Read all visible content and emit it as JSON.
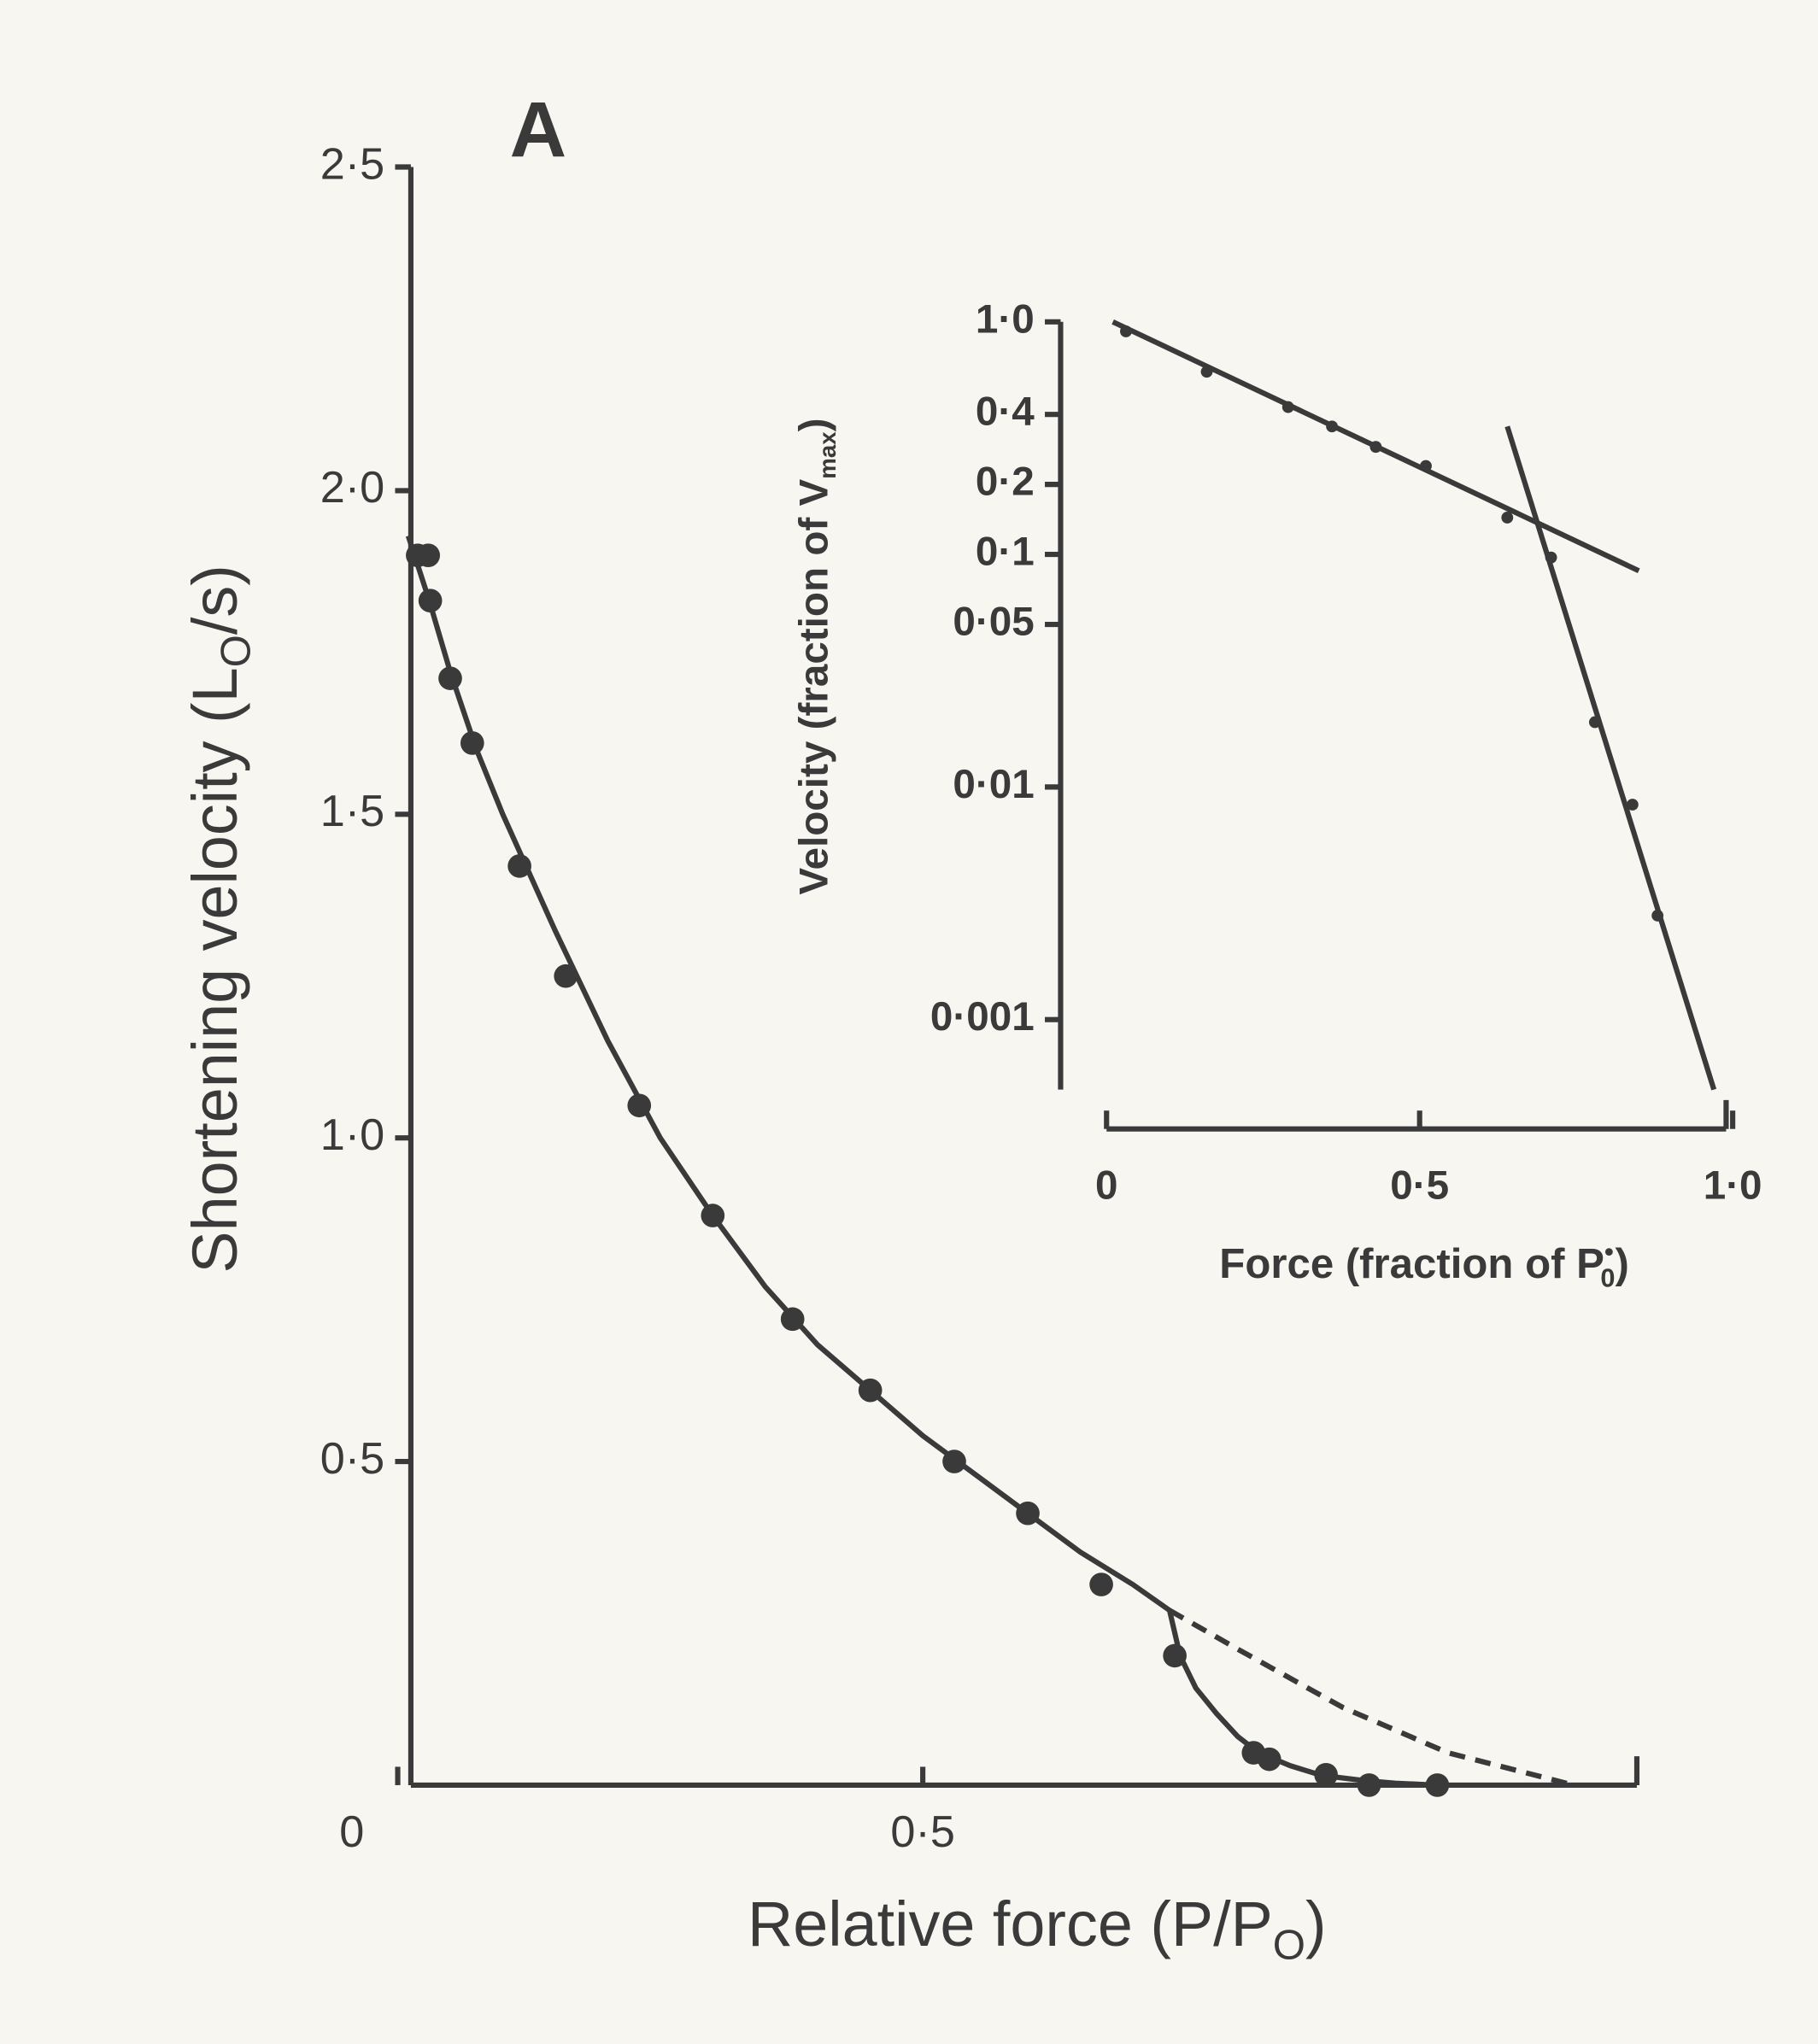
{
  "chart_data": [
    {
      "type": "scatter",
      "title": "A",
      "xlabel": {
        "main": "Relative force (P/P",
        "sub": "O",
        "end": ")"
      },
      "ylabel": {
        "main": "Shortening velocity (L",
        "sub": "O",
        "end": "/s)"
      },
      "xlim": [
        0,
        1.18
      ],
      "ylim": [
        0,
        2.5
      ],
      "xticks": [
        0,
        {
          "value": 0.5,
          "label": "0·5"
        }
      ],
      "yticks": [
        {
          "value": 0.5,
          "label": "0·5"
        },
        {
          "value": 1.0,
          "label": "1·0"
        },
        {
          "value": 1.5,
          "label": "1·5"
        },
        {
          "value": 2.0,
          "label": "2·0"
        },
        {
          "value": 2.5,
          "label": "2·5"
        }
      ],
      "color": "#3a3a3a",
      "x": [
        0.019,
        0.029,
        0.031,
        0.05,
        0.071,
        0.116,
        0.16,
        0.23,
        0.3,
        0.376,
        0.45,
        0.53,
        0.6,
        0.67,
        0.74,
        0.815,
        0.83,
        0.884,
        0.925,
        0.99
      ],
      "y": [
        1.9,
        1.9,
        1.83,
        1.71,
        1.61,
        1.42,
        1.25,
        1.05,
        0.88,
        0.72,
        0.61,
        0.5,
        0.42,
        0.31,
        0.2,
        0.05,
        0.04,
        0.016,
        0.0,
        0.0
      ],
      "lines": [
        {
          "x": [
            0.01,
            0.03,
            0.05,
            0.075,
            0.1,
            0.15,
            0.2,
            0.25,
            0.3,
            0.35,
            0.4,
            0.45,
            0.5,
            0.55,
            0.6,
            0.65,
            0.7,
            0.735,
            0.745,
            0.76,
            0.78,
            0.8,
            0.82,
            0.85,
            0.88,
            0.92,
            0.95,
            0.99
          ],
          "y": [
            1.93,
            1.83,
            1.72,
            1.6,
            1.5,
            1.32,
            1.15,
            1.0,
            0.88,
            0.77,
            0.68,
            0.61,
            0.54,
            0.48,
            0.42,
            0.36,
            0.31,
            0.27,
            0.2,
            0.15,
            0.11,
            0.075,
            0.05,
            0.03,
            0.015,
            0.007,
            0.003,
            0.0
          ],
          "dash": false
        },
        {
          "x": [
            0.735,
            0.8,
            0.9,
            1.0,
            1.12
          ],
          "y": [
            0.27,
            0.21,
            0.12,
            0.05,
            0.0
          ],
          "dash": true
        }
      ]
    },
    {
      "type": "scatter",
      "ylog": true,
      "xlabel": {
        "main": "Force (fraction of P",
        "sup": "•",
        "sub": "0",
        "end": ")"
      },
      "ylabel": {
        "main": "Velocity (fraction of V",
        "sub": "max",
        "end": ")"
      },
      "xlim": [
        0,
        1.0
      ],
      "ylim": [
        0.0005,
        1.0
      ],
      "xticks": [
        0,
        {
          "value": 0.5,
          "label": "0·5"
        },
        {
          "value": 1.0,
          "label": "1·0"
        }
      ],
      "yticks": [
        {
          "value": 1.0,
          "label": "1·0"
        },
        {
          "value": 0.4,
          "label": "0·4"
        },
        {
          "value": 0.2,
          "label": "0·2"
        },
        {
          "value": 0.1,
          "label": "0·1"
        },
        {
          "value": 0.05,
          "label": "0·05"
        },
        {
          "value": 0.01,
          "label": "0·01"
        },
        {
          "value": 0.001,
          "label": "0·001"
        }
      ],
      "color": "#3a3a3a",
      "x": [
        0.031,
        0.16,
        0.29,
        0.36,
        0.43,
        0.51,
        0.64,
        0.71,
        0.78,
        0.84,
        0.88
      ],
      "y": [
        0.91,
        0.61,
        0.43,
        0.355,
        0.29,
        0.24,
        0.144,
        0.097,
        0.019,
        0.0084,
        0.0028
      ],
      "lines": [
        {
          "x": [
            0.01,
            0.85
          ],
          "y": [
            1.0,
            0.085
          ],
          "dash": false
        },
        {
          "x": [
            0.64,
            0.97
          ],
          "y": [
            0.355,
            0.0005
          ],
          "dash": false
        }
      ]
    }
  ]
}
